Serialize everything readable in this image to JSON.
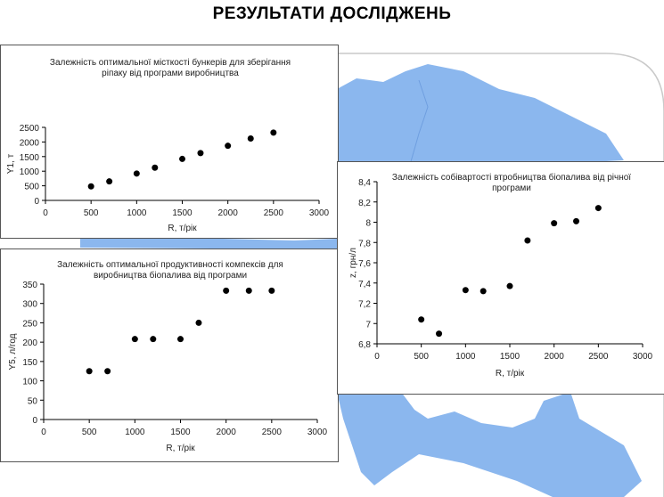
{
  "slide": {
    "title": "РЕЗУЛЬТАТИ ДОСЛІДЖЕНЬ"
  },
  "colors": {
    "map": "#8bb7ee",
    "point": "#000000",
    "axis": "#000000"
  },
  "chart_data": [
    {
      "type": "scatter",
      "title": "Залежність оптимальної місткості бункерів для зберігання ріпаку від програми виробництва",
      "xlabel": "R, т/рік",
      "ylabel": "Y1, т",
      "xlim": [
        0,
        3000
      ],
      "ylim": [
        0,
        2500
      ],
      "xticks": [
        "0",
        "500",
        "1000",
        "1500",
        "2000",
        "2500",
        "3000"
      ],
      "yticks": [
        "0",
        "500",
        "1000",
        "1500",
        "2000",
        "2500"
      ],
      "x": [
        500,
        700,
        1000,
        1200,
        1500,
        1700,
        2000,
        2250,
        2500
      ],
      "y": [
        480,
        650,
        920,
        1120,
        1420,
        1620,
        1870,
        2120,
        2320
      ],
      "grid": false
    },
    {
      "type": "scatter",
      "title": "Залежність оптимальної продуктивності компексів для виробництва біопалива від програми",
      "xlabel": "R, т/рік",
      "ylabel": "Y5, л/год",
      "xlim": [
        0,
        3000
      ],
      "ylim": [
        0,
        350
      ],
      "xticks": [
        "0",
        "500",
        "1000",
        "1500",
        "2000",
        "2500",
        "3000"
      ],
      "yticks": [
        "0",
        "50",
        "100",
        "150",
        "200",
        "250",
        "300",
        "350"
      ],
      "x": [
        500,
        700,
        1000,
        1200,
        1500,
        1700,
        2000,
        2250,
        2500
      ],
      "y": [
        125,
        125,
        208,
        208,
        208,
        250,
        333,
        333,
        333
      ],
      "grid": false
    },
    {
      "type": "scatter",
      "title": "Залежність собівартості втробництва біопалива від річної програми",
      "xlabel": "R, т/рік",
      "ylabel": "z, грн/л",
      "xlim": [
        0,
        3000
      ],
      "ylim": [
        6.8,
        8.4
      ],
      "xticks": [
        "0",
        "500",
        "1000",
        "1500",
        "2000",
        "2500",
        "3000"
      ],
      "yticks": [
        "6,8",
        "7",
        "7,2",
        "7,4",
        "7,6",
        "7,8",
        "8",
        "8,2",
        "8,4"
      ],
      "x": [
        500,
        700,
        1000,
        1200,
        1500,
        1700,
        2000,
        2250,
        2500
      ],
      "y": [
        7.04,
        6.9,
        7.33,
        7.32,
        7.37,
        7.82,
        7.99,
        8.01,
        8.14
      ],
      "grid": false
    }
  ]
}
